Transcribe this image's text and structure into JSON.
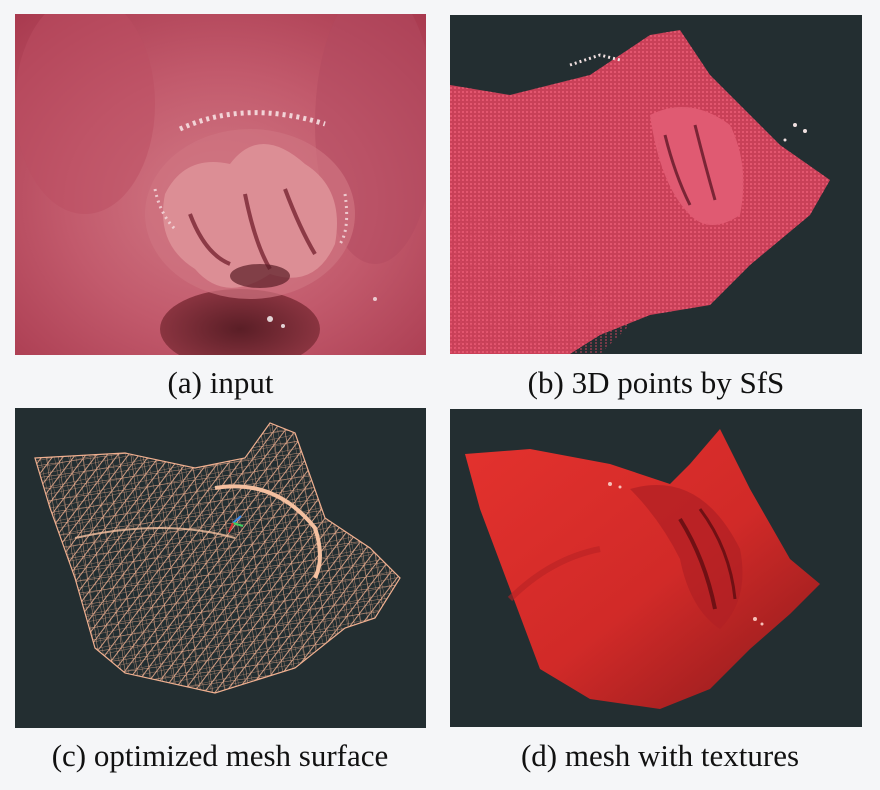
{
  "figure": {
    "background_color": "#f5f6f8",
    "panel_background_color": "#232e31",
    "panels": [
      {
        "id": "a",
        "caption": "(a) input",
        "content": "endoscope-frame",
        "tissue_color": "#c8566a"
      },
      {
        "id": "b",
        "caption": "(b) 3D points by SfS",
        "content": "point-cloud",
        "point_color": "#e8506a"
      },
      {
        "id": "c",
        "caption": "(c) optimized mesh surface",
        "content": "wireframe-mesh",
        "wire_color": "#f0b090"
      },
      {
        "id": "d",
        "caption": "(d) mesh with textures",
        "content": "textured-mesh",
        "surface_color": "#d8222a"
      }
    ]
  }
}
